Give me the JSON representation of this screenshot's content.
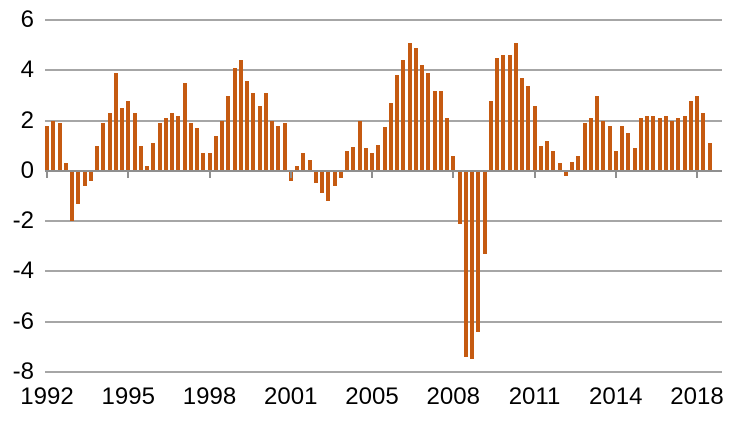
{
  "chart_data": {
    "type": "bar",
    "title": "",
    "frequency": "quarterly",
    "start_period": "1992Q1",
    "end_period": "2018Q3",
    "values": [
      1.8,
      2.0,
      1.9,
      0.3,
      -2.0,
      -1.3,
      -0.6,
      -0.4,
      1.0,
      1.9,
      2.3,
      3.9,
      2.5,
      2.8,
      2.3,
      1.0,
      0.2,
      1.1,
      1.9,
      2.1,
      2.3,
      2.2,
      3.5,
      1.9,
      1.7,
      0.7,
      0.7,
      1.4,
      2.0,
      3.0,
      4.1,
      4.4,
      3.6,
      3.1,
      2.6,
      3.1,
      2.0,
      1.8,
      1.9,
      -0.4,
      0.2,
      0.7,
      0.45,
      -0.5,
      -0.9,
      -1.2,
      -0.6,
      -0.3,
      0.8,
      0.95,
      2.0,
      0.9,
      0.7,
      1.05,
      1.75,
      2.7,
      3.8,
      4.4,
      5.1,
      4.9,
      4.2,
      3.9,
      3.2,
      3.2,
      2.1,
      0.6,
      -2.1,
      -7.4,
      -7.5,
      -6.4,
      -3.3,
      2.8,
      4.5,
      4.6,
      4.6,
      5.1,
      3.7,
      3.4,
      2.6,
      1.0,
      1.2,
      0.8,
      0.3,
      -0.2,
      0.35,
      0.6,
      1.9,
      2.1,
      3.0,
      2.0,
      1.8,
      0.8,
      1.8,
      1.5,
      0.9,
      2.1,
      2.2,
      2.2,
      2.1,
      2.2,
      2.0,
      2.1,
      2.2,
      2.8,
      3.0,
      2.3,
      1.1
    ],
    "y_ticks": [
      6,
      4,
      2,
      0,
      -2,
      -4,
      -6,
      -8
    ],
    "ylim": [
      -8,
      6
    ],
    "x_tick_labels": [
      "1992",
      "1995",
      "1998",
      "2001",
      "2005",
      "2008",
      "2011",
      "2014",
      "2018"
    ],
    "x_tick_every_bars": 13,
    "grid": "horizontal",
    "legend": "none",
    "colors": {
      "bar": "#C55A11",
      "gridline": "#A6A6A6",
      "axis": "#8F8F8F",
      "label": "#000000",
      "background": "#FFFFFF"
    }
  }
}
